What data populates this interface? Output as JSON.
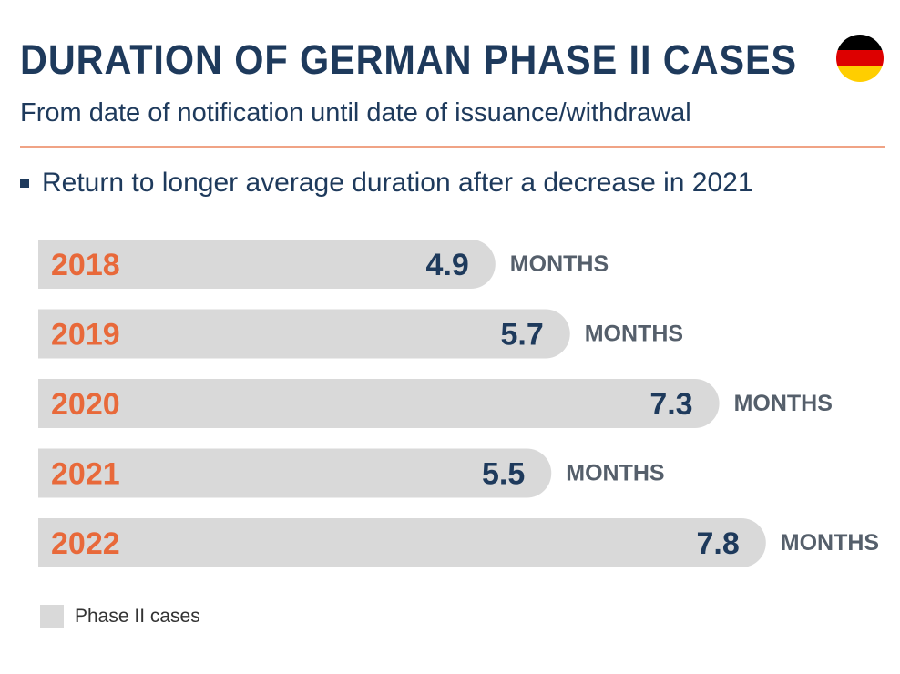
{
  "header": {
    "title": "DURATION OF GERMAN PHASE II CASES",
    "subtitle": "From date of notification until date of issuance/withdrawal",
    "bullet": "Return to longer average duration after a decrease in 2021"
  },
  "flag": {
    "colors": [
      "#000000",
      "#dd0000",
      "#ffce00"
    ],
    "icon": "german-flag-icon"
  },
  "legend": {
    "label": "Phase II cases",
    "color": "#d9d9d9"
  },
  "colors": {
    "title": "#1e3a5c",
    "year": "#e8693a",
    "value": "#1e3a5c",
    "unit": "#555f6b",
    "bar": "#d9d9d9",
    "divider": "#f0a385"
  },
  "chart_data": {
    "type": "bar",
    "orientation": "horizontal",
    "categories": [
      "2018",
      "2019",
      "2020",
      "2021",
      "2022"
    ],
    "values": [
      4.9,
      5.7,
      7.3,
      5.5,
      7.8
    ],
    "value_labels": [
      "4.9",
      "5.7",
      "7.3",
      "5.5",
      "7.8"
    ],
    "unit": "MONTHS",
    "series": [
      {
        "name": "Phase II cases",
        "values": [
          4.9,
          5.7,
          7.3,
          5.5,
          7.8
        ]
      }
    ],
    "xlim": [
      0,
      8.3
    ],
    "legend_position": "bottom-left"
  }
}
